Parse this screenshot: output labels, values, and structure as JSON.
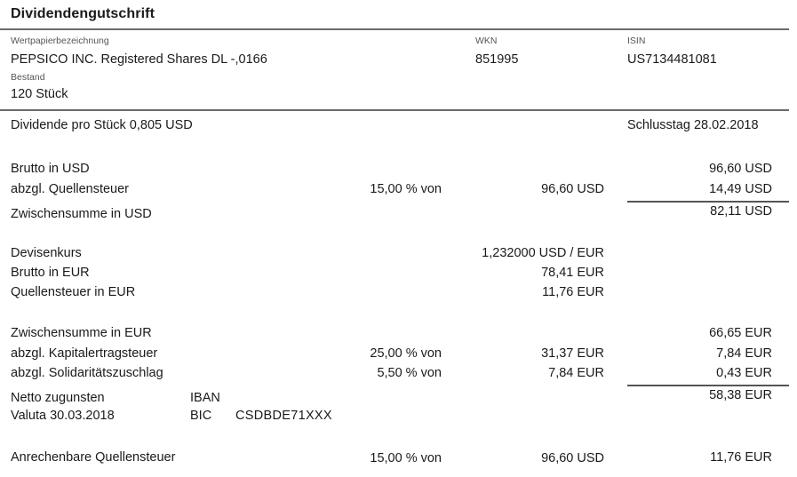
{
  "document": {
    "title": "Dividendengutschrift"
  },
  "security": {
    "name_label": "Wertpapierbezeichnung",
    "name": "PEPSICO INC. Registered Shares DL -,0166",
    "wkn_label": "WKN",
    "wkn": "851995",
    "isin_label": "ISIN",
    "isin": "US7134481081",
    "holding_label": "Bestand",
    "holding": "120 Stück"
  },
  "summary": {
    "dividend_per_share": "Dividende pro Stück 0,805 USD",
    "record_date": "Schlusstag 28.02.2018"
  },
  "rows": {
    "gross_usd": {
      "label": "Brutto in USD",
      "amount": "96,60 USD"
    },
    "withholding": {
      "label": "abzgl. Quellensteuer",
      "rate": "15,00 % von",
      "base": "96,60 USD",
      "amount": "14,49 USD"
    },
    "subtotal_usd": {
      "label": "Zwischensumme in USD",
      "amount": "82,11 USD"
    },
    "fx_rate": {
      "label": "Devisenkurs",
      "value": "1,232000 USD / EUR"
    },
    "gross_eur": {
      "label": "Brutto in EUR",
      "value": "78,41 EUR"
    },
    "withholding_eur": {
      "label": "Quellensteuer in EUR",
      "value": "11,76 EUR"
    },
    "subtotal_eur": {
      "label": "Zwischensumme in EUR",
      "amount": "66,65 EUR"
    },
    "capital_gains_tax": {
      "label": "abzgl. Kapitalertragsteuer",
      "rate": "25,00 % von",
      "base": "31,37 EUR",
      "amount": "7,84 EUR"
    },
    "solidarity": {
      "label": "abzgl. Solidaritätszuschlag",
      "rate": "5,50 % von",
      "base": "7,84 EUR",
      "amount": "0,43 EUR"
    },
    "net": {
      "label": "Netto zugunsten",
      "iban_label": "IBAN",
      "amount": "58,38 EUR"
    },
    "value_date": {
      "label": "Valuta 30.03.2018",
      "bic_label": "BIC",
      "bic": "CSDBDE71XXX"
    },
    "creditable": {
      "label": "Anrechenbare Quellensteuer",
      "rate": "15,00 % von",
      "base": "96,60 USD",
      "amount": "11,76 EUR"
    }
  }
}
